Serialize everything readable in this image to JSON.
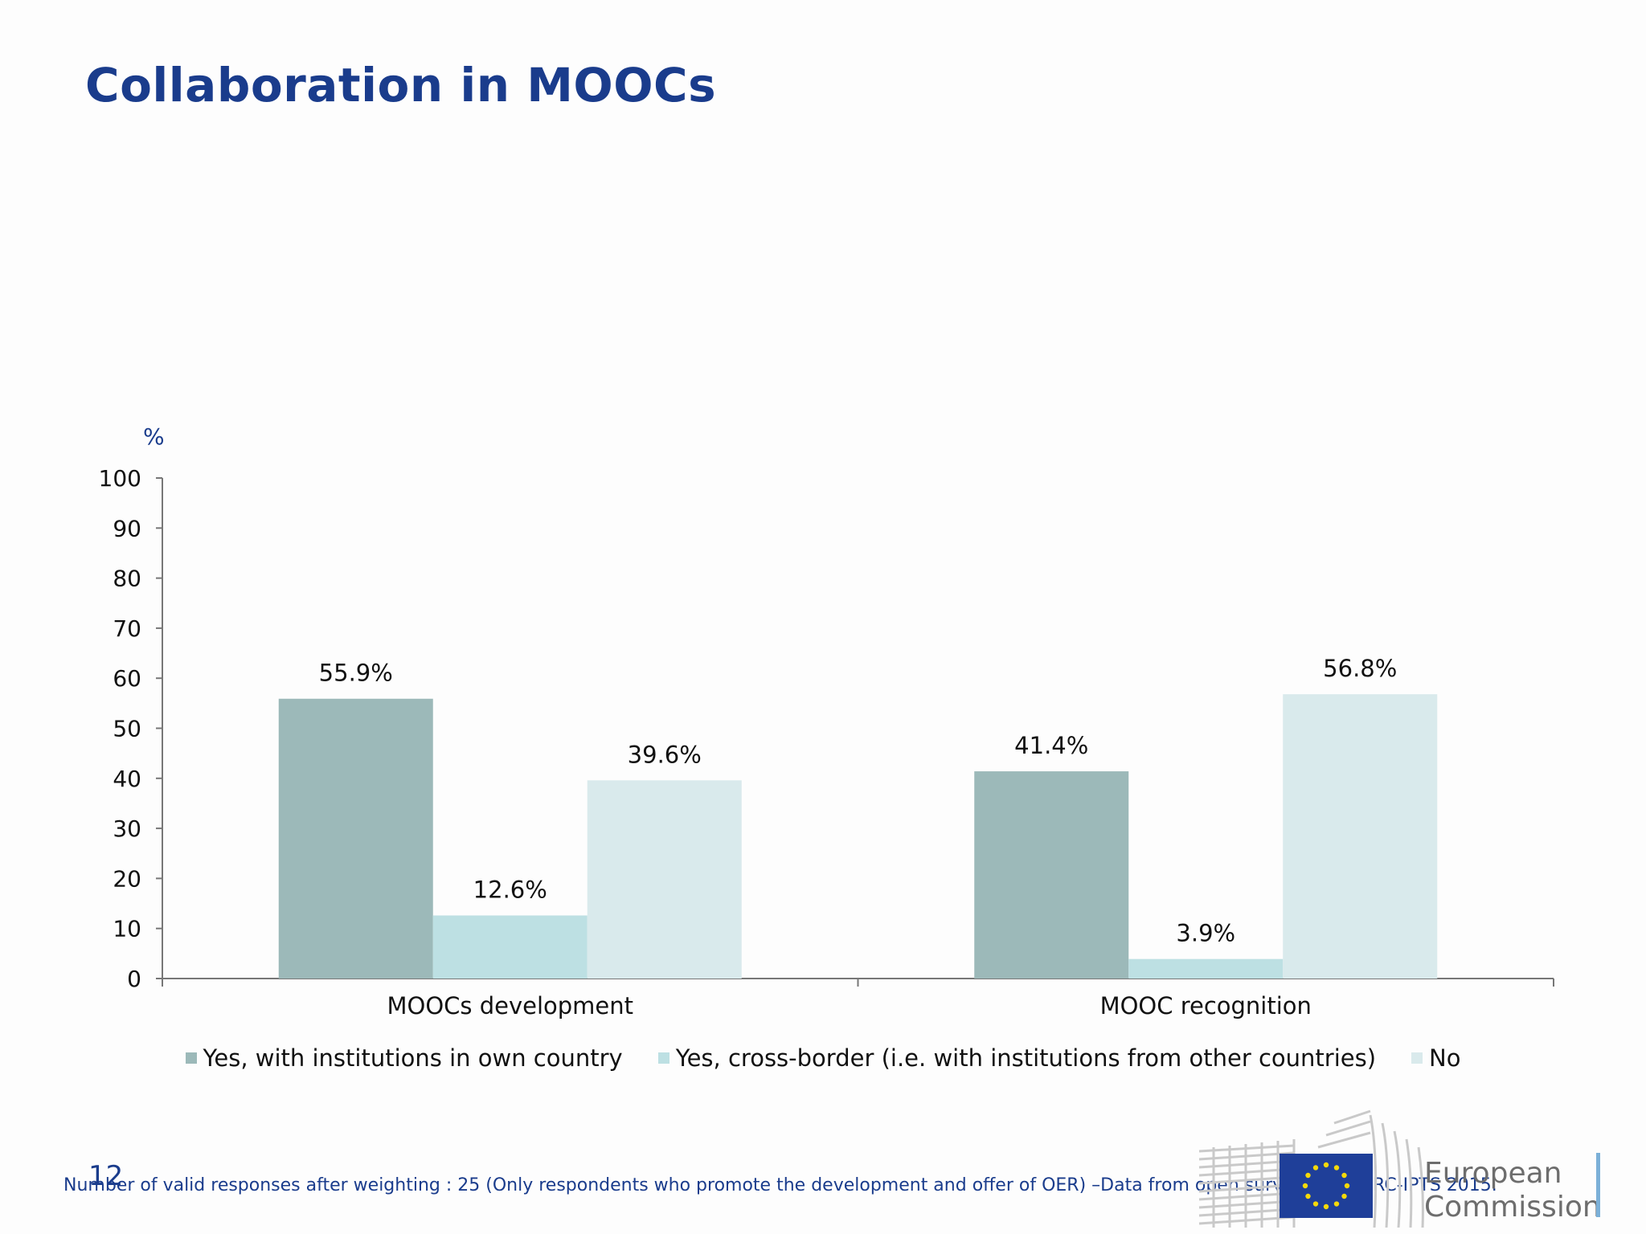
{
  "title": "Collaboration in MOOCs",
  "chart_data": {
    "type": "bar",
    "ylabel": "%",
    "ylim": [
      0,
      100
    ],
    "yticks": [
      0,
      10,
      20,
      30,
      40,
      50,
      60,
      70,
      80,
      90,
      100
    ],
    "categories": [
      "MOOCs development",
      "MOOC recognition"
    ],
    "series": [
      {
        "name": "Yes, with institutions in own country",
        "values": [
          55.9,
          41.4
        ],
        "labels": [
          "55.9%",
          "41.4%"
        ],
        "color": "#9cb9b9"
      },
      {
        "name": "Yes, cross-border (i.e. with institutions from other countries)",
        "values": [
          12.6,
          3.9
        ],
        "labels": [
          "12.6%",
          "3.9%"
        ],
        "color": "#bde0e3"
      },
      {
        "name": "No",
        "values": [
          39.6,
          56.8
        ],
        "labels": [
          "39.6%",
          "56.8%"
        ],
        "color": "#d9eaec"
      }
    ],
    "legend_position": "bottom"
  },
  "footer": {
    "page_number": "12",
    "note": "Number of valid responses after weighting : 25 (Only respondents who promote the development and offer of OER) –Data from open survey study. JRC-IPTS 2015."
  },
  "logo": {
    "line1": "European",
    "line2": "Commission",
    "flag_color": "#1f3f99",
    "star_color": "#f5d90a"
  }
}
